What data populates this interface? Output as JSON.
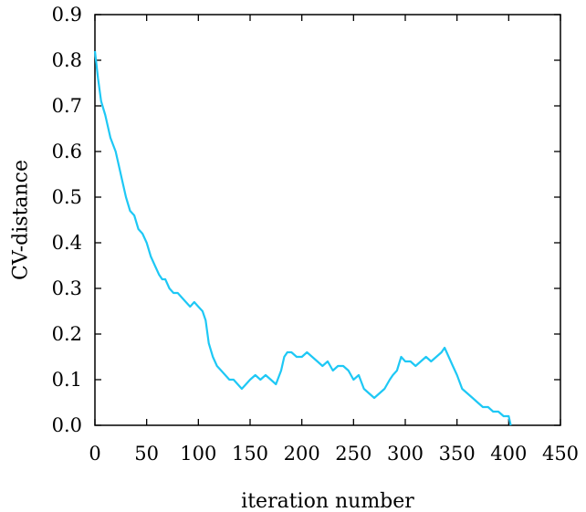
{
  "chart_data": {
    "type": "line",
    "title": "",
    "xlabel": "iteration number",
    "ylabel": "CV-distance",
    "xlim": [
      0,
      450
    ],
    "ylim": [
      0,
      0.9
    ],
    "xticks": [
      0,
      50,
      100,
      150,
      200,
      250,
      300,
      350,
      400,
      450
    ],
    "yticks": [
      0.0,
      0.1,
      0.2,
      0.3,
      0.4,
      0.5,
      0.6,
      0.7,
      0.8,
      0.9
    ],
    "xtick_labels": [
      "0",
      "50",
      "100",
      "150",
      "200",
      "250",
      "300",
      "350",
      "400",
      "450"
    ],
    "ytick_labels": [
      "0.0",
      "0.1",
      "0.2",
      "0.3",
      "0.4",
      "0.5",
      "0.6",
      "0.7",
      "0.8",
      "0.9"
    ],
    "grid": false,
    "legend": "none",
    "series": [
      {
        "color": "#1ec8f5",
        "x": [
          0,
          3,
          6,
          10,
          15,
          20,
          23,
          27,
          30,
          34,
          38,
          42,
          46,
          50,
          54,
          58,
          62,
          65,
          68,
          72,
          76,
          80,
          84,
          88,
          92,
          96,
          100,
          104,
          107,
          110,
          114,
          118,
          122,
          126,
          130,
          134,
          138,
          142,
          146,
          150,
          155,
          160,
          165,
          170,
          175,
          180,
          183,
          186,
          190,
          195,
          200,
          205,
          210,
          215,
          220,
          225,
          230,
          235,
          240,
          245,
          250,
          255,
          260,
          265,
          270,
          275,
          280,
          285,
          288,
          292,
          296,
          300,
          305,
          310,
          315,
          320,
          325,
          330,
          335,
          338,
          342,
          346,
          350,
          355,
          360,
          365,
          370,
          375,
          380,
          385,
          390,
          395,
          400,
          402
        ],
        "y": [
          0.82,
          0.76,
          0.71,
          0.68,
          0.63,
          0.6,
          0.57,
          0.53,
          0.5,
          0.47,
          0.46,
          0.43,
          0.42,
          0.4,
          0.37,
          0.35,
          0.33,
          0.32,
          0.32,
          0.3,
          0.29,
          0.29,
          0.28,
          0.27,
          0.26,
          0.27,
          0.26,
          0.25,
          0.23,
          0.18,
          0.15,
          0.13,
          0.12,
          0.11,
          0.1,
          0.1,
          0.09,
          0.08,
          0.09,
          0.1,
          0.11,
          0.1,
          0.11,
          0.1,
          0.09,
          0.12,
          0.15,
          0.16,
          0.16,
          0.15,
          0.15,
          0.16,
          0.15,
          0.14,
          0.13,
          0.14,
          0.12,
          0.13,
          0.13,
          0.12,
          0.1,
          0.11,
          0.08,
          0.07,
          0.06,
          0.07,
          0.08,
          0.1,
          0.11,
          0.12,
          0.15,
          0.14,
          0.14,
          0.13,
          0.14,
          0.15,
          0.14,
          0.15,
          0.16,
          0.17,
          0.15,
          0.13,
          0.11,
          0.08,
          0.07,
          0.06,
          0.05,
          0.04,
          0.04,
          0.03,
          0.03,
          0.02,
          0.02,
          0.0
        ]
      }
    ]
  }
}
